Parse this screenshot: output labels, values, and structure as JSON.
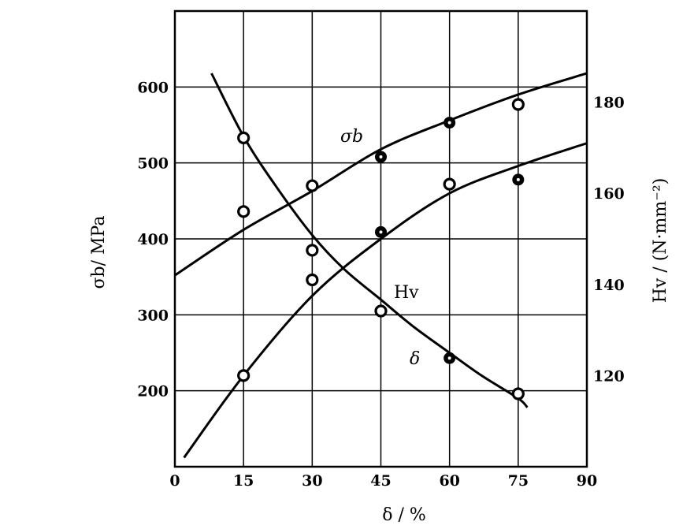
{
  "chart_data": {
    "type": "line",
    "x_axis": {
      "label": "δ / %",
      "ticks": [
        0,
        15,
        30,
        45,
        60,
        75,
        90
      ],
      "range": [
        0,
        90
      ]
    },
    "y_left_axis": {
      "label": "σb/ MPa",
      "ticks": [
        200,
        300,
        400,
        500,
        600
      ],
      "range": [
        100,
        700
      ]
    },
    "y_right_axis": {
      "label": "Hv / (N·mm⁻²)",
      "ticks": [
        120,
        140,
        160,
        180
      ],
      "range": [
        100,
        200
      ]
    },
    "grid": true,
    "series": [
      {
        "name": "σb",
        "axis": "left",
        "label_text": "σb",
        "curve": [
          [
            0,
            352
          ],
          [
            15,
            412
          ],
          [
            30,
            463
          ],
          [
            45,
            518
          ],
          [
            60,
            556
          ],
          [
            75,
            590
          ],
          [
            90,
            618
          ]
        ],
        "markers": [
          {
            "x": 15,
            "y": 436,
            "style": "hollow"
          },
          {
            "x": 30,
            "y": 470,
            "style": "hollow"
          },
          {
            "x": 45,
            "y": 508,
            "style": "filled"
          },
          {
            "x": 60,
            "y": 553,
            "style": "filled"
          },
          {
            "x": 75,
            "y": 577,
            "style": "hollow"
          }
        ]
      },
      {
        "name": "Hv",
        "axis": "right",
        "label_text": "Hv",
        "curve": [
          [
            2,
            102
          ],
          [
            15,
            120
          ],
          [
            30,
            137.5
          ],
          [
            45,
            150
          ],
          [
            60,
            160
          ],
          [
            75,
            166
          ],
          [
            90,
            171
          ]
        ],
        "markers": [
          {
            "x": 15,
            "y": 120,
            "style": "hollow"
          },
          {
            "x": 30,
            "y": 141,
            "style": "hollow"
          },
          {
            "x": 45,
            "y": 151.5,
            "style": "filled"
          },
          {
            "x": 60,
            "y": 162,
            "style": "hollow"
          },
          {
            "x": 75,
            "y": 163,
            "style": "filled"
          }
        ]
      },
      {
        "name": "δ",
        "axis": "left",
        "label_text": "δ",
        "curve": [
          [
            8,
            618
          ],
          [
            15,
            535
          ],
          [
            22,
            470
          ],
          [
            30,
            405
          ],
          [
            37,
            360
          ],
          [
            45,
            320
          ],
          [
            52,
            285
          ],
          [
            60,
            250
          ],
          [
            67,
            220
          ],
          [
            75,
            190
          ],
          [
            77,
            178
          ]
        ],
        "markers": [
          {
            "x": 15,
            "y": 533,
            "style": "hollow"
          },
          {
            "x": 30,
            "y": 385,
            "style": "hollow"
          },
          {
            "x": 45,
            "y": 305,
            "style": "hollow"
          },
          {
            "x": 60,
            "y": 243,
            "style": "filled"
          },
          {
            "x": 75,
            "y": 196,
            "style": "hollow"
          }
        ]
      }
    ]
  }
}
